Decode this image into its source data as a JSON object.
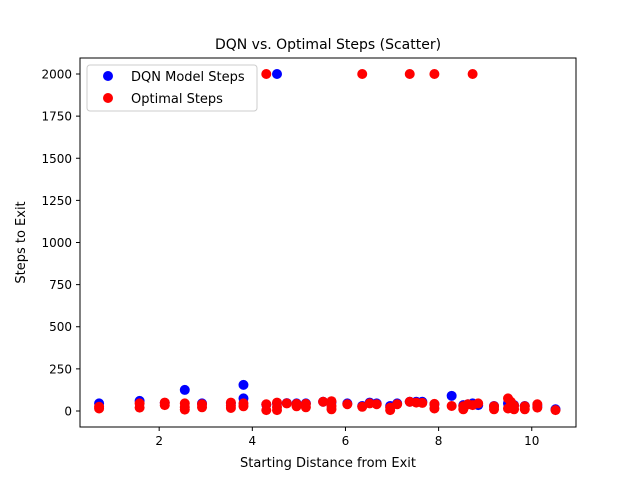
{
  "chart_data": {
    "type": "scatter",
    "title": "DQN vs. Optimal Steps (Scatter)",
    "xlabel": "Starting Distance from Exit",
    "ylabel": "Steps to Exit",
    "xlim": [
      0.3,
      10.95
    ],
    "ylim": [
      -95,
      2095
    ],
    "xticks": [
      2,
      4,
      6,
      8,
      10
    ],
    "yticks": [
      0,
      250,
      500,
      750,
      1000,
      1250,
      1500,
      1750,
      2000
    ],
    "grid": false,
    "legend_position": "top-left",
    "series": [
      {
        "name": "DQN Model Steps",
        "color": "#0000ff",
        "points": [
          [
            0.71,
            45
          ],
          [
            1.58,
            60
          ],
          [
            2.12,
            48
          ],
          [
            2.55,
            125
          ],
          [
            2.92,
            45
          ],
          [
            3.54,
            47
          ],
          [
            3.81,
            155
          ],
          [
            3.81,
            75
          ],
          [
            4.3,
            38
          ],
          [
            4.53,
            2000
          ],
          [
            4.53,
            45
          ],
          [
            4.74,
            47
          ],
          [
            4.95,
            45
          ],
          [
            5.15,
            45
          ],
          [
            5.52,
            55
          ],
          [
            5.7,
            52
          ],
          [
            6.04,
            45
          ],
          [
            6.36,
            30
          ],
          [
            6.52,
            50
          ],
          [
            6.67,
            45
          ],
          [
            6.96,
            30
          ],
          [
            7.11,
            45
          ],
          [
            7.38,
            55
          ],
          [
            7.52,
            55
          ],
          [
            7.65,
            55
          ],
          [
            7.91,
            40
          ],
          [
            8.28,
            90
          ],
          [
            8.53,
            35
          ],
          [
            8.63,
            40
          ],
          [
            8.73,
            45
          ],
          [
            8.85,
            35
          ],
          [
            9.19,
            30
          ],
          [
            9.49,
            45
          ],
          [
            9.55,
            38
          ],
          [
            9.62,
            35
          ],
          [
            9.85,
            30
          ],
          [
            10.12,
            30
          ],
          [
            10.51,
            10
          ]
        ]
      },
      {
        "name": "Optimal Steps",
        "color": "#ff0000",
        "points": [
          [
            0.71,
            15
          ],
          [
            0.71,
            25
          ],
          [
            1.58,
            20
          ],
          [
            1.58,
            45
          ],
          [
            2.12,
            35
          ],
          [
            2.12,
            50
          ],
          [
            2.55,
            8
          ],
          [
            2.55,
            22
          ],
          [
            2.55,
            45
          ],
          [
            2.92,
            22
          ],
          [
            2.92,
            40
          ],
          [
            3.54,
            18
          ],
          [
            3.54,
            32
          ],
          [
            3.54,
            50
          ],
          [
            3.81,
            28
          ],
          [
            3.81,
            45
          ],
          [
            4.3,
            2000
          ],
          [
            4.3,
            5
          ],
          [
            4.3,
            40
          ],
          [
            4.53,
            5
          ],
          [
            4.53,
            22
          ],
          [
            4.53,
            50
          ],
          [
            4.74,
            45
          ],
          [
            4.95,
            28
          ],
          [
            4.95,
            42
          ],
          [
            5.15,
            22
          ],
          [
            5.15,
            42
          ],
          [
            5.52,
            55
          ],
          [
            5.7,
            10
          ],
          [
            5.7,
            30
          ],
          [
            5.7,
            58
          ],
          [
            6.04,
            40
          ],
          [
            6.36,
            2000
          ],
          [
            6.36,
            25
          ],
          [
            6.52,
            45
          ],
          [
            6.67,
            40
          ],
          [
            6.96,
            5
          ],
          [
            6.96,
            20
          ],
          [
            7.11,
            40
          ],
          [
            7.38,
            2000
          ],
          [
            7.38,
            55
          ],
          [
            7.52,
            50
          ],
          [
            7.65,
            48
          ],
          [
            7.91,
            2000
          ],
          [
            7.91,
            15
          ],
          [
            7.91,
            42
          ],
          [
            8.28,
            30
          ],
          [
            8.53,
            10
          ],
          [
            8.53,
            28
          ],
          [
            8.63,
            40
          ],
          [
            8.73,
            2000
          ],
          [
            8.73,
            35
          ],
          [
            8.85,
            45
          ],
          [
            9.19,
            10
          ],
          [
            9.19,
            28
          ],
          [
            9.49,
            75
          ],
          [
            9.49,
            15
          ],
          [
            9.55,
            55
          ],
          [
            9.55,
            25
          ],
          [
            9.62,
            10
          ],
          [
            9.62,
            32
          ],
          [
            9.85,
            10
          ],
          [
            9.85,
            28
          ],
          [
            10.12,
            20
          ],
          [
            10.12,
            40
          ],
          [
            10.51,
            5
          ]
        ]
      }
    ]
  }
}
